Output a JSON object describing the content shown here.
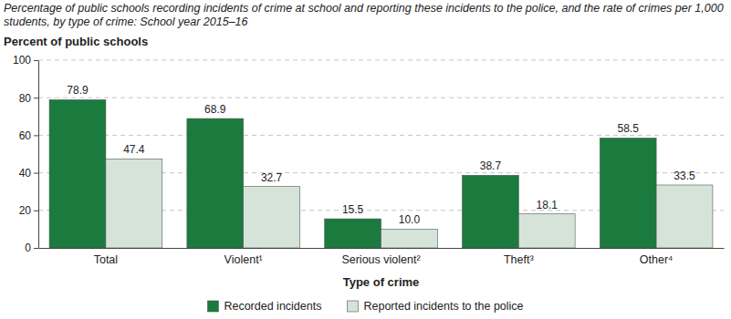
{
  "chart_data": {
    "type": "bar",
    "title": "Percentage of public schools recording incidents of crime at school and reporting these incidents to the police, and the rate of crimes per 1,000 students, by type of crime: School year 2015–16",
    "y_label": "Percent of public schools",
    "x_label": "Type of crime",
    "categories": [
      "Total",
      "Violent¹",
      "Serious violent²",
      "Theft³",
      "Other⁴"
    ],
    "series": [
      {
        "name": "Recorded incidents",
        "color": "#1b7a3e",
        "values": [
          78.9,
          68.9,
          15.5,
          38.7,
          58.5
        ]
      },
      {
        "name": "Reported incidents to the police",
        "color": "#d5e3d8",
        "values": [
          47.4,
          32.7,
          10.0,
          18.1,
          33.5
        ],
        "value_labels": [
          "47.4",
          "32.7",
          "10.0",
          "18.1",
          "33.5"
        ]
      }
    ],
    "ylim": [
      0,
      100
    ],
    "yticks": [
      0,
      20,
      40,
      60,
      80,
      100
    ],
    "grid": true,
    "legend": "bottom",
    "data_labels": true
  }
}
